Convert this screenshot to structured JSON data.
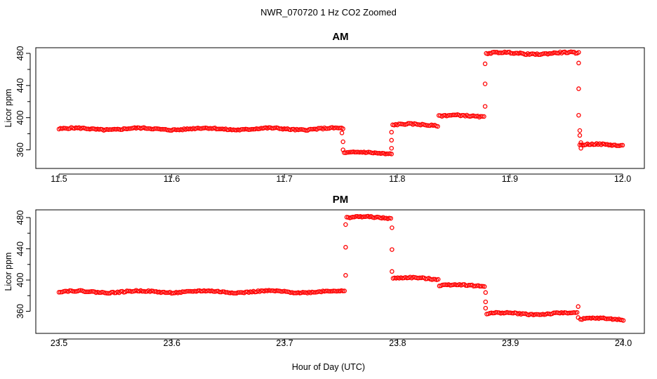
{
  "figure": {
    "title": "NWR_070720  1 Hz CO2 Zoomed",
    "xlabel": "Hour of Day (UTC)",
    "point_color": "#ff0000"
  },
  "chart_data": [
    {
      "type": "scatter",
      "title": "AM",
      "xlabel": "Hour of Day (UTC)",
      "ylabel": "Licor ppm",
      "xlim": [
        11.5,
        12.0
      ],
      "ylim": [
        348,
        490
      ],
      "x_ticks": [
        "11.5",
        "11.6",
        "11.7",
        "11.8",
        "11.9",
        "12.0"
      ],
      "y_ticks": [
        "360",
        "400",
        "440",
        "480"
      ],
      "grid": false,
      "legend": "none",
      "plateaus": [
        {
          "x_start": 11.5,
          "x_end": 11.752,
          "y": 386
        },
        {
          "x_start": 11.753,
          "x_end": 11.795,
          "y": 356
        },
        {
          "x_start": 11.796,
          "x_end": 11.836,
          "y": 391
        },
        {
          "x_start": 11.837,
          "x_end": 11.877,
          "y": 402
        },
        {
          "x_start": 11.879,
          "x_end": 11.961,
          "y": 480
        },
        {
          "x_start": 11.962,
          "x_end": 12.0,
          "y": 366
        }
      ],
      "transition_points": [
        {
          "x": 11.751,
          "y": 381
        },
        {
          "x": 11.752,
          "y": 370
        },
        {
          "x": 11.752,
          "y": 360
        },
        {
          "x": 11.795,
          "y": 372
        },
        {
          "x": 11.795,
          "y": 362
        },
        {
          "x": 11.795,
          "y": 382
        },
        {
          "x": 11.878,
          "y": 414
        },
        {
          "x": 11.878,
          "y": 442
        },
        {
          "x": 11.878,
          "y": 467
        },
        {
          "x": 11.961,
          "y": 468
        },
        {
          "x": 11.961,
          "y": 436
        },
        {
          "x": 11.961,
          "y": 403
        },
        {
          "x": 11.962,
          "y": 384
        },
        {
          "x": 11.962,
          "y": 378
        },
        {
          "x": 11.963,
          "y": 369
        },
        {
          "x": 11.963,
          "y": 362
        }
      ]
    },
    {
      "type": "scatter",
      "title": "PM",
      "xlabel": "Hour of Day (UTC)",
      "ylabel": "Licor ppm",
      "xlim": [
        23.5,
        24.0
      ],
      "ylim": [
        348,
        490
      ],
      "x_ticks": [
        "23.5",
        "23.6",
        "23.7",
        "23.8",
        "23.9",
        "24.0"
      ],
      "y_ticks": [
        "360",
        "400",
        "440",
        "480"
      ],
      "grid": false,
      "legend": "none",
      "plateaus": [
        {
          "x_start": 23.5,
          "x_end": 23.753,
          "y": 385
        },
        {
          "x_start": 23.755,
          "x_end": 23.794,
          "y": 480
        },
        {
          "x_start": 23.796,
          "x_end": 23.836,
          "y": 402
        },
        {
          "x_start": 23.837,
          "x_end": 23.877,
          "y": 393
        },
        {
          "x_start": 23.879,
          "x_end": 23.959,
          "y": 357
        },
        {
          "x_start": 23.962,
          "x_end": 24.0,
          "y": 350
        }
      ],
      "transition_points": [
        {
          "x": 23.754,
          "y": 406
        },
        {
          "x": 23.754,
          "y": 442
        },
        {
          "x": 23.754,
          "y": 471
        },
        {
          "x": 23.795,
          "y": 467
        },
        {
          "x": 23.795,
          "y": 439
        },
        {
          "x": 23.795,
          "y": 411
        },
        {
          "x": 23.878,
          "y": 384
        },
        {
          "x": 23.878,
          "y": 372
        },
        {
          "x": 23.878,
          "y": 364
        },
        {
          "x": 23.96,
          "y": 366
        },
        {
          "x": 23.96,
          "y": 352
        }
      ]
    }
  ]
}
